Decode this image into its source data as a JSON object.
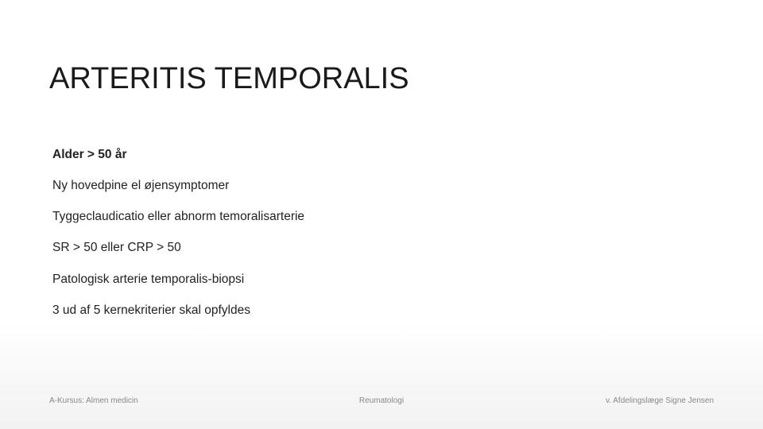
{
  "title": "ARTERITIS TEMPORALIS",
  "criteria": [
    {
      "text": "Alder > 50 år",
      "bold": true
    },
    {
      "text": "Ny hovedpine el øjensymptomer",
      "bold": false
    },
    {
      "text": "Tyggeclaudicatio eller abnorm temoralisarterie",
      "bold": false
    },
    {
      "text": "SR > 50 eller CRP > 50",
      "bold": false
    },
    {
      "text": "Patologisk arterie temporalis-biopsi",
      "bold": false
    },
    {
      "text": "3 ud af 5 kernekriterier skal opfyldes",
      "bold": false
    }
  ],
  "footer": {
    "left": "A-Kursus: Almen medicin",
    "center": "Reumatologi",
    "right": "v. Afdelingslæge Signe Jensen"
  },
  "style": {
    "title_fontsize": 38,
    "body_fontsize": 15.5,
    "footer_fontsize": 10,
    "title_color": "#1a1a1a",
    "body_color": "#222222",
    "footer_color": "#888888",
    "background_top": "#ffffff",
    "background_bottom": "#f2f2f2"
  }
}
